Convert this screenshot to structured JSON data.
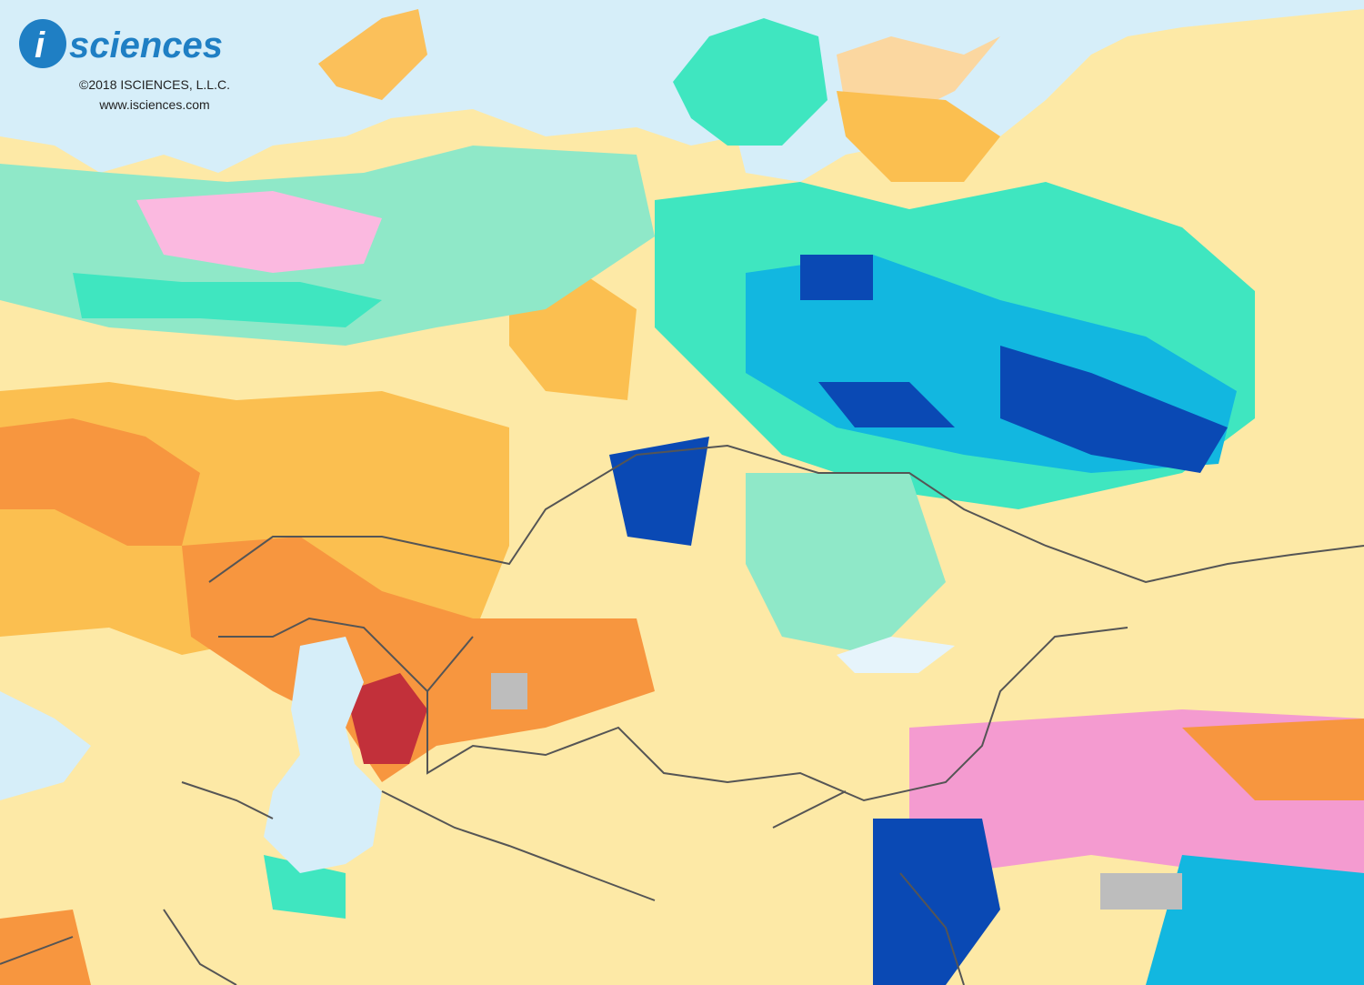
{
  "logo": {
    "mark": "i",
    "name": "sciences"
  },
  "copyright": "©2018 ISCIENCES, L.L.C.",
  "website": "www.isciences.com"
}
